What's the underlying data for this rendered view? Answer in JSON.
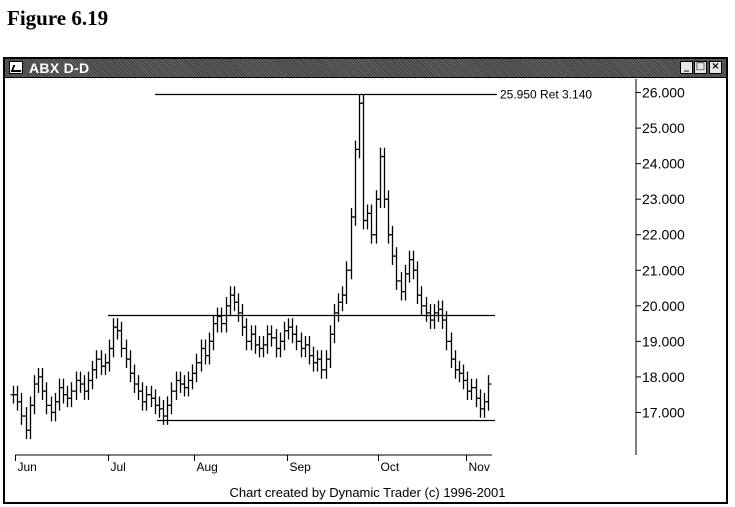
{
  "figure_label": "Figure 6.19",
  "window": {
    "title": "ABX D-D",
    "icon": "chart-icon",
    "buttons": {
      "minimize": "_",
      "maximize": "□",
      "close": "×"
    }
  },
  "footer": "Chart created by Dynamic Trader (c) 1996-2001",
  "chart_data": {
    "type": "line",
    "subtype": "ohlc-bar",
    "title": "ABX D-D",
    "xlabel": "",
    "ylabel": "",
    "x_ticks": [
      "Jun",
      "Jul",
      "Aug",
      "Sep",
      "Oct",
      "Nov"
    ],
    "y_ticks": [
      "26.000",
      "25.000",
      "24.000",
      "23.000",
      "22.000",
      "21.000",
      "20.000",
      "19.000",
      "18.000",
      "17.000"
    ],
    "ylim": [
      16.0,
      26.1
    ],
    "grid": false,
    "series": [
      {
        "values": [
          17.5,
          17.3,
          16.9,
          16.5,
          17.2,
          17.8,
          18.0,
          17.6,
          17.2,
          17.0,
          17.3,
          17.7,
          17.5,
          17.4,
          17.6,
          17.9,
          17.8,
          17.6,
          17.9,
          18.2,
          18.5,
          18.3,
          18.4,
          18.8,
          19.4,
          19.3,
          18.8,
          18.5,
          18.1,
          17.8,
          17.6,
          17.3,
          17.5,
          17.4,
          17.2,
          17.1,
          16.9,
          17.2,
          17.6,
          17.9,
          17.8,
          17.7,
          17.9,
          18.1,
          18.4,
          18.8,
          18.6,
          19.0,
          19.5,
          19.7,
          19.5,
          20.0,
          20.3,
          20.1,
          19.8,
          19.4,
          19.0,
          19.2,
          18.9,
          18.8,
          18.9,
          19.2,
          19.1,
          18.8,
          19.0,
          19.3,
          19.4,
          19.2,
          19.0,
          18.8,
          18.9,
          18.6,
          18.4,
          18.5,
          18.2,
          18.5,
          19.2,
          19.8,
          20.1,
          20.3,
          21.0,
          22.5,
          24.4,
          25.7,
          22.4,
          22.6,
          22.0,
          23.0,
          24.2,
          23.0,
          22.0,
          21.4,
          20.7,
          20.4,
          20.9,
          21.3,
          21.0,
          20.3,
          20.0,
          19.8,
          19.6,
          19.8,
          19.9,
          19.6,
          19.0,
          18.5,
          18.2,
          18.1,
          17.9,
          17.6,
          17.7,
          17.4,
          17.1,
          17.3,
          17.8
        ]
      }
    ],
    "annotations": [
      {
        "text": "25.950 Ret 3.140",
        "y": 25.95
      }
    ],
    "horizontal_lines": [
      25.95,
      19.75,
      16.8
    ]
  }
}
